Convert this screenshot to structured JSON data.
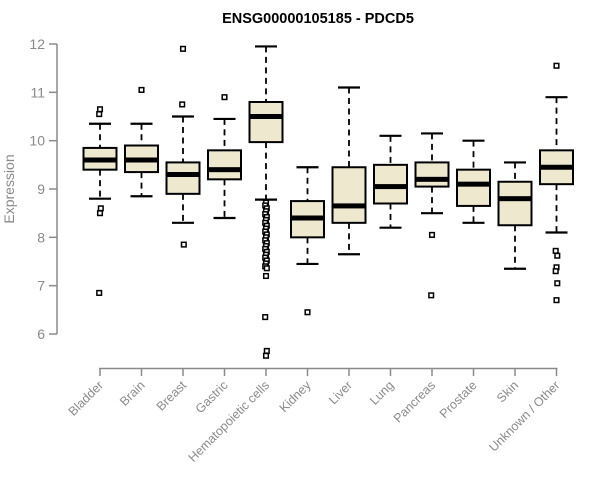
{
  "chart_data": {
    "type": "boxplot",
    "title": "ENSG00000105185 - PDCD5",
    "ylabel": "Expression",
    "xlabel": "",
    "ylim": [
      6,
      12
    ],
    "yticks": [
      6,
      7,
      8,
      9,
      10,
      11,
      12
    ],
    "grid": false,
    "legend": "none",
    "categories": [
      "Bladder",
      "Brain",
      "Breast",
      "Gastric",
      "Hematopoietic cells",
      "Kidney",
      "Liver",
      "Lung",
      "Pancreas",
      "Prostate",
      "Skin",
      "Unknown / Other"
    ],
    "boxes": [
      {
        "category": "Bladder",
        "whisker_low": 8.8,
        "q1": 9.4,
        "median": 9.6,
        "q3": 9.85,
        "whisker_high": 10.35,
        "outliers": [
          10.65,
          10.55,
          8.6,
          8.5,
          6.85
        ]
      },
      {
        "category": "Brain",
        "whisker_low": 8.85,
        "q1": 9.35,
        "median": 9.6,
        "q3": 9.9,
        "whisker_high": 10.35,
        "outliers": [
          11.05
        ]
      },
      {
        "category": "Breast",
        "whisker_low": 8.3,
        "q1": 8.9,
        "median": 9.3,
        "q3": 9.55,
        "whisker_high": 10.5,
        "outliers": [
          11.9,
          10.75,
          7.85
        ]
      },
      {
        "category": "Gastric",
        "whisker_low": 8.4,
        "q1": 9.2,
        "median": 9.4,
        "q3": 9.8,
        "whisker_high": 10.45,
        "outliers": [
          10.9
        ]
      },
      {
        "category": "Hematopoietic cells",
        "whisker_low": 8.78,
        "q1": 9.97,
        "median": 10.5,
        "q3": 10.8,
        "whisker_high": 11.95,
        "outliers": [
          8.72,
          8.66,
          8.6,
          8.54,
          8.48,
          8.42,
          8.36,
          8.3,
          8.24,
          8.18,
          8.12,
          8.06,
          8.0,
          7.94,
          7.88,
          7.82,
          7.76,
          7.7,
          7.64,
          7.58,
          7.52,
          7.46,
          7.4,
          7.36,
          7.2,
          6.35,
          5.65,
          5.55
        ]
      },
      {
        "category": "Kidney",
        "whisker_low": 7.45,
        "q1": 8.0,
        "median": 8.4,
        "q3": 8.75,
        "whisker_high": 9.45,
        "outliers": [
          6.45
        ]
      },
      {
        "category": "Liver",
        "whisker_low": 7.65,
        "q1": 8.3,
        "median": 8.65,
        "q3": 9.45,
        "whisker_high": 11.1,
        "outliers": []
      },
      {
        "category": "Lung",
        "whisker_low": 8.2,
        "q1": 8.7,
        "median": 9.05,
        "q3": 9.5,
        "whisker_high": 10.1,
        "outliers": []
      },
      {
        "category": "Pancreas",
        "whisker_low": 8.5,
        "q1": 9.05,
        "median": 9.2,
        "q3": 9.55,
        "whisker_high": 10.15,
        "outliers": [
          8.05,
          6.8
        ]
      },
      {
        "category": "Prostate",
        "whisker_low": 8.3,
        "q1": 8.65,
        "median": 9.1,
        "q3": 9.4,
        "whisker_high": 10.0,
        "outliers": []
      },
      {
        "category": "Skin",
        "whisker_low": 7.35,
        "q1": 8.25,
        "median": 8.8,
        "q3": 9.15,
        "whisker_high": 9.55,
        "outliers": []
      },
      {
        "category": "Unknown / Other",
        "whisker_low": 8.1,
        "q1": 9.1,
        "median": 9.45,
        "q3": 9.8,
        "whisker_high": 10.9,
        "outliers": [
          11.55,
          7.72,
          7.62,
          7.38,
          7.3,
          7.05,
          6.7
        ]
      }
    ],
    "colors": {
      "background": "#FFFFFF",
      "box_fill": "#EDE8CE",
      "box_border": "#000000",
      "median": "#000000",
      "whisker": "#000000",
      "outlier_stroke": "#000000",
      "outlier_fill": "#FFFFFF",
      "axis": "#8A8A8A",
      "tick_text": "#8A8A8A",
      "title_text": "#000000"
    }
  }
}
